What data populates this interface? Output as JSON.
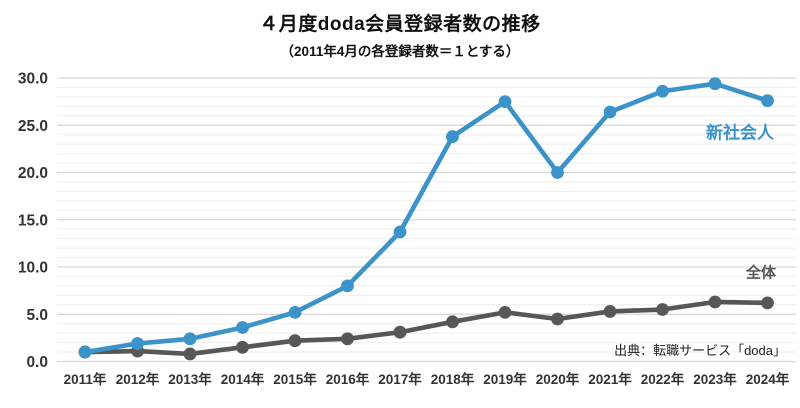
{
  "chart_data": {
    "type": "line",
    "title": "４月度doda会員登録者数の推移",
    "subtitle": "（2011年4月の各登録者数＝１とする）",
    "source": "出典：転職サービス「doda」",
    "categories": [
      "2011年",
      "2012年",
      "2013年",
      "2014年",
      "2015年",
      "2016年",
      "2017年",
      "2018年",
      "2019年",
      "2020年",
      "2021年",
      "2022年",
      "2023年",
      "2024年"
    ],
    "series": [
      {
        "name": "全体",
        "color": "#575757",
        "values": [
          1.0,
          1.1,
          0.8,
          1.5,
          2.2,
          2.4,
          3.1,
          4.2,
          5.2,
          4.5,
          5.3,
          5.5,
          6.3,
          6.2
        ]
      },
      {
        "name": "新社会人",
        "color": "#3b93c9",
        "values": [
          1.0,
          1.9,
          2.4,
          3.6,
          5.2,
          8.0,
          13.7,
          23.8,
          27.5,
          20.0,
          26.4,
          28.6,
          29.4,
          27.6
        ]
      }
    ],
    "ylim": [
      0,
      30
    ],
    "ytick_labels": [
      "0.0",
      "5.0",
      "10.0",
      "15.0",
      "20.0",
      "25.0",
      "30.0"
    ],
    "ytick_step": 5,
    "minor_grid_step": 1,
    "grid": true,
    "legend_position": "inline-series-labels"
  },
  "colors": {
    "grid_minor": "#eeeeee",
    "grid_major": "#d6d6d6",
    "axis_text": "#333333"
  }
}
